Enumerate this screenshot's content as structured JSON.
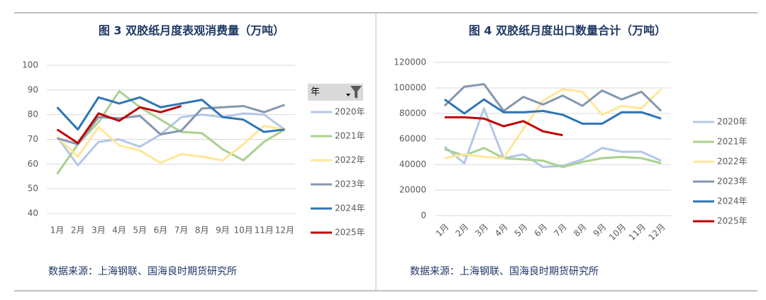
{
  "chart_data": [
    {
      "type": "line",
      "title": "图 3  双胶纸月度表观消费量（万吨）",
      "legend_title": "年",
      "categories": [
        "1月",
        "2月",
        "3月",
        "4月",
        "5月",
        "6月",
        "7月",
        "8月",
        "9月",
        "10月",
        "11月",
        "12月"
      ],
      "ylim": [
        40,
        100
      ],
      "yticks": [
        40,
        50,
        60,
        70,
        80,
        90,
        100
      ],
      "grid": true,
      "series": [
        {
          "name": "2020年",
          "color": "#b4c7e7",
          "values": [
            71,
            59.5,
            69,
            70,
            67,
            72,
            79,
            80,
            79,
            80.5,
            80,
            74
          ]
        },
        {
          "name": "2021年",
          "color": "#a9d18e",
          "values": [
            56,
            68,
            77,
            89.5,
            83,
            78,
            73,
            72.5,
            66,
            61.5,
            69,
            74
          ]
        },
        {
          "name": "2022年",
          "color": "#ffe699",
          "values": [
            71,
            63,
            75,
            67.5,
            65.5,
            60.5,
            64,
            63,
            61.5,
            68,
            75.5,
            74
          ]
        },
        {
          "name": "2023年",
          "color": "#8497b0",
          "values": [
            70.5,
            68,
            79,
            78.5,
            79.5,
            72,
            73.5,
            82.5,
            83,
            83.5,
            81,
            84
          ]
        },
        {
          "name": "2024年",
          "color": "#2e75b6",
          "values": [
            83,
            74,
            87,
            84.5,
            87,
            83,
            84.5,
            86,
            79,
            78,
            73,
            74
          ]
        },
        {
          "name": "2025年",
          "color": "#c00000",
          "values": [
            74,
            68.5,
            80.5,
            77.5,
            83,
            81,
            83.5,
            null,
            null,
            null,
            null,
            null
          ]
        }
      ],
      "source": "数据来源：上海钢联、国海良时期货研究所"
    },
    {
      "type": "line",
      "title": "图 4  双胶纸月度出口数量合计（万吨）",
      "categories": [
        "1月",
        "2月",
        "3月",
        "4月",
        "5月",
        "6月",
        "7月",
        "8月",
        "9月",
        "10月",
        "11月",
        "12月"
      ],
      "ylim": [
        0,
        120000
      ],
      "yticks": [
        0,
        20000,
        40000,
        60000,
        80000,
        100000,
        120000
      ],
      "grid": true,
      "series": [
        {
          "name": "2020年",
          "color": "#b4c7e7",
          "values": [
            54000,
            41000,
            84000,
            45000,
            48000,
            38000,
            39000,
            44000,
            53000,
            50000,
            50000,
            43000
          ]
        },
        {
          "name": "2021年",
          "color": "#a9d18e",
          "values": [
            52000,
            47000,
            53000,
            45000,
            44000,
            43000,
            38000,
            42000,
            45000,
            46000,
            45000,
            41000
          ]
        },
        {
          "name": "2022年",
          "color": "#ffe699",
          "values": [
            45000,
            48000,
            46000,
            45000,
            68000,
            90000,
            99000,
            97000,
            79000,
            86000,
            84000,
            99000
          ]
        },
        {
          "name": "2023年",
          "color": "#8497b0",
          "values": [
            86000,
            101000,
            103000,
            82000,
            93000,
            87000,
            94000,
            86000,
            98000,
            91000,
            97000,
            82000
          ]
        },
        {
          "name": "2024年",
          "color": "#2e75b6",
          "values": [
            91000,
            80000,
            91000,
            81000,
            81000,
            82000,
            79000,
            72000,
            72000,
            81000,
            81000,
            76000
          ]
        },
        {
          "name": "2025年",
          "color": "#c00000",
          "values": [
            77000,
            77000,
            76000,
            70000,
            74000,
            66000,
            63000,
            null,
            null,
            null,
            null,
            null
          ]
        }
      ],
      "source": "数据来源：上海钢联、国海良时期货研究所"
    }
  ]
}
